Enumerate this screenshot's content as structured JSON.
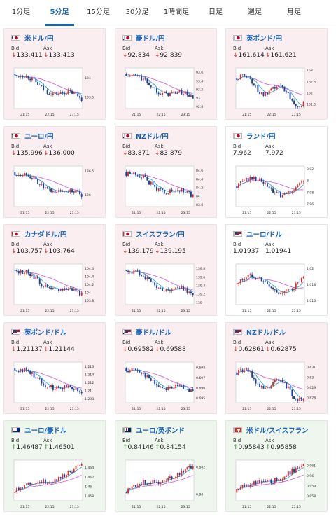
{
  "tabs": [
    {
      "label": "1分足",
      "active": false
    },
    {
      "label": "5分足",
      "active": true
    },
    {
      "label": "15分足",
      "active": false
    },
    {
      "label": "30分足",
      "active": false
    },
    {
      "label": "1時間足",
      "active": false
    },
    {
      "label": "日足",
      "active": false
    },
    {
      "label": "週足",
      "active": false
    },
    {
      "label": "月足",
      "active": false
    }
  ],
  "labels": {
    "bid": "Bid",
    "ask": "Ask"
  },
  "colors": {
    "up_candle": "#d32f2f",
    "down_candle": "#1a3fa6",
    "ma_long": "#d066d8",
    "ma_short": "#35a7c9",
    "card_down_bg": "#fbeef0",
    "card_up_bg": "#eef6ee",
    "pair_link": "#1565c0"
  },
  "cards": [
    {
      "pair": "米ドル/円",
      "flags": [
        "us",
        "jp"
      ],
      "trend": "down",
      "bid": "133.411",
      "ask": "133.413",
      "chart_data": {
        "type": "candlestick",
        "x_ticks": [
          "21:15",
          "22:15",
          "23:15"
        ],
        "y_ticks": [
          "134",
          "133.5"
        ],
        "ylim": [
          133.2,
          134.25
        ]
      }
    },
    {
      "pair": "豪ドル/円",
      "flags": [
        "au",
        "jp"
      ],
      "trend": "down",
      "bid": "92.834",
      "ask": "92.839",
      "chart_data": {
        "type": "candlestick",
        "x_ticks": [
          "21:15",
          "22:15",
          "23:15"
        ],
        "y_ticks": [
          "93.6",
          "93.4",
          "93.2",
          "93",
          "92.8"
        ],
        "ylim": [
          92.75,
          93.7
        ]
      }
    },
    {
      "pair": "英ポンド/円",
      "flags": [
        "gb",
        "jp"
      ],
      "trend": "down",
      "bid": "161.614",
      "ask": "161.621",
      "chart_data": {
        "type": "candlestick",
        "x_ticks": [
          "21:15",
          "22:15",
          "23:15"
        ],
        "y_ticks": [
          "163",
          "162.5",
          "162",
          "161.5"
        ],
        "ylim": [
          161.3,
          163.1
        ]
      }
    },
    {
      "pair": "ユーロ/円",
      "flags": [
        "eu",
        "jp"
      ],
      "trend": "down",
      "bid": "135.996",
      "ask": "136.000",
      "chart_data": {
        "type": "candlestick",
        "x_ticks": [
          "21:15",
          "22:15",
          "23:15"
        ],
        "y_ticks": [
          "136.5",
          "136"
        ],
        "ylim": [
          135.75,
          136.6
        ]
      }
    },
    {
      "pair": "NZドル/円",
      "flags": [
        "nz",
        "jp"
      ],
      "trend": "down",
      "bid": "83.871",
      "ask": "83.879",
      "chart_data": {
        "type": "candlestick",
        "x_ticks": [
          "21:15",
          "22:15",
          "23:15"
        ],
        "y_ticks": [
          "84.6",
          "84.4",
          "84.2",
          "84",
          "83.8"
        ],
        "ylim": [
          83.75,
          84.7
        ]
      }
    },
    {
      "pair": "ランド/円",
      "flags": [
        "za",
        "jp"
      ],
      "trend": "flat",
      "bid": "7.962",
      "ask": "7.972",
      "chart_data": {
        "type": "candlestick",
        "x_ticks": [
          "21:15",
          "22:15",
          "23:15"
        ],
        "y_ticks": [
          "8.02",
          "8",
          "7.98",
          "7.96"
        ],
        "ylim": [
          7.955,
          8.025
        ]
      }
    },
    {
      "pair": "カナダドル/円",
      "flags": [
        "ca",
        "jp"
      ],
      "trend": "down",
      "bid": "103.757",
      "ask": "103.764",
      "chart_data": {
        "type": "candlestick",
        "x_ticks": [
          "21:15",
          "22:15",
          "23:15"
        ],
        "y_ticks": [
          "104.6",
          "104.4",
          "104.2",
          "104",
          "103.8"
        ],
        "ylim": [
          103.7,
          104.7
        ]
      }
    },
    {
      "pair": "スイスフラン/円",
      "flags": [
        "ch",
        "jp"
      ],
      "trend": "down",
      "bid": "139.179",
      "ask": "139.195",
      "chart_data": {
        "type": "candlestick",
        "x_ticks": [
          "21:15",
          "22:15",
          "23:15"
        ],
        "y_ticks": [
          "139.8",
          "139.6",
          "139.4",
          "139.2",
          "139"
        ],
        "ylim": [
          138.95,
          139.9
        ]
      }
    },
    {
      "pair": "ユーロ/ドル",
      "flags": [
        "eu",
        "us"
      ],
      "trend": "flat",
      "bid": "1.01937",
      "ask": "1.01941",
      "chart_data": {
        "type": "candlestick",
        "x_ticks": [
          "21:15",
          "22:15",
          "23:15"
        ],
        "y_ticks": [
          "1.02",
          "1.018",
          "1.016"
        ],
        "ylim": [
          1.0155,
          1.0205
        ]
      }
    },
    {
      "pair": "英ポンド/ドル",
      "flags": [
        "gb",
        "us"
      ],
      "trend": "down",
      "bid": "1.21137",
      "ask": "1.21144",
      "chart_data": {
        "type": "candlestick",
        "x_ticks": [
          "21:15",
          "22:15",
          "23:15"
        ],
        "y_ticks": [
          "1.216",
          "1.214",
          "1.212",
          "1.21",
          "1.208"
        ],
        "ylim": [
          1.207,
          1.217
        ]
      }
    },
    {
      "pair": "豪ドル/ドル",
      "flags": [
        "au",
        "us"
      ],
      "trend": "down",
      "bid": "0.69582",
      "ask": "0.69588",
      "chart_data": {
        "type": "candlestick",
        "x_ticks": [
          "21:15",
          "22:15",
          "23:15"
        ],
        "y_ticks": [
          "0.698",
          "0.697",
          "0.696",
          "0.695"
        ],
        "ylim": [
          0.6945,
          0.6985
        ]
      }
    },
    {
      "pair": "NZドル/ドル",
      "flags": [
        "nz",
        "us"
      ],
      "trend": "down",
      "bid": "0.62861",
      "ask": "0.62875",
      "chart_data": {
        "type": "candlestick",
        "x_ticks": [
          "21:15",
          "22:15",
          "23:15"
        ],
        "y_ticks": [
          "0.631",
          "0.63",
          "0.629",
          "0.628"
        ],
        "ylim": [
          0.6275,
          0.6315
        ]
      }
    },
    {
      "pair": "ユーロ/豪ドル",
      "flags": [
        "eu",
        "au"
      ],
      "trend": "up",
      "bid": "1.46487",
      "ask": "1.46501",
      "chart_data": {
        "type": "candlestick",
        "x_ticks": [
          "21:15",
          "22:15",
          "23:15"
        ],
        "y_ticks": [
          "1.464",
          "1.462",
          "1.46",
          "1.458"
        ],
        "ylim": [
          1.457,
          1.4655
        ]
      }
    },
    {
      "pair": "ユーロ/英ポンド",
      "flags": [
        "eu",
        "gb"
      ],
      "trend": "up",
      "bid": "0.84146",
      "ask": "0.84154",
      "chart_data": {
        "type": "candlestick",
        "x_ticks": [
          "21:15",
          "22:15",
          "23:15"
        ],
        "y_ticks": [
          "0.842",
          "0.84"
        ],
        "ylim": [
          0.8395,
          0.8425
        ]
      }
    },
    {
      "pair": "米ドル/スイスフラン",
      "flags": [
        "us",
        "ch"
      ],
      "trend": "up",
      "bid": "0.95843",
      "ask": "0.95858",
      "chart_data": {
        "type": "candlestick",
        "x_ticks": [
          "21:15",
          "22:15",
          "23:15"
        ],
        "y_ticks": [
          "0.961",
          "0.96",
          "0.959",
          "0.958"
        ],
        "ylim": [
          0.9575,
          0.9615
        ]
      }
    }
  ]
}
